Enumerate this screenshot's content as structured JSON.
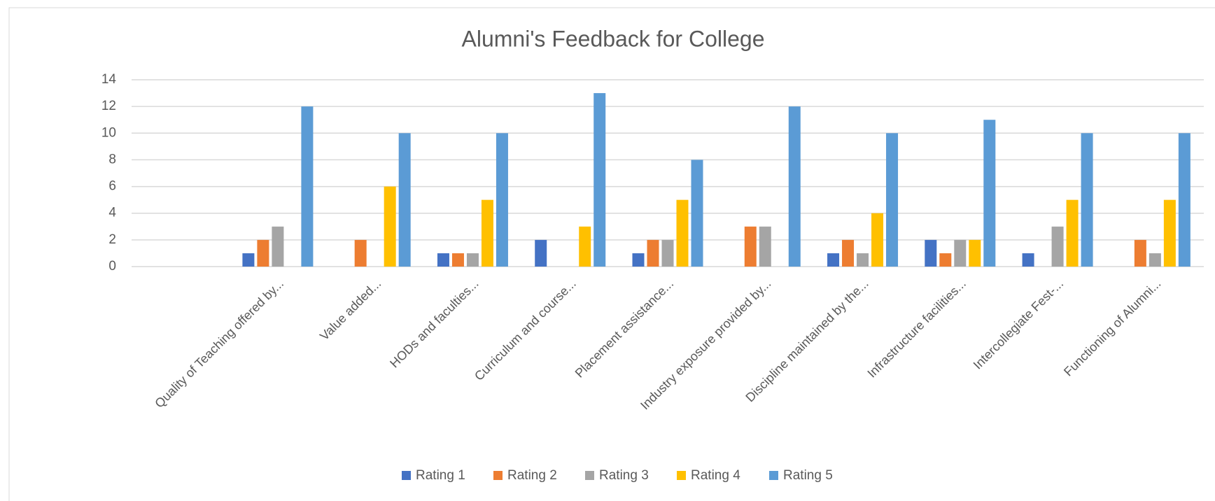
{
  "chart_data": {
    "type": "bar",
    "title": "Alumni's Feedback for College",
    "categories": [
      null,
      "Quality of Teaching offered by...",
      "Value added...",
      "HODs and faculties...",
      "Curriculum and course...",
      "Placement assistance...",
      "Industry exposure provided by...",
      "Discipline maintained by the...",
      "Infrastructure facilities...",
      "Intercollegiate Fest-...",
      "Functioning of Alumni..."
    ],
    "series": [
      {
        "name": "Rating 1",
        "color": "#4472c4",
        "values": [
          null,
          1,
          0,
          1,
          2,
          1,
          0,
          1,
          2,
          1,
          0
        ]
      },
      {
        "name": "Rating 2",
        "color": "#ed7d31",
        "values": [
          null,
          2,
          2,
          1,
          0,
          2,
          3,
          2,
          1,
          0,
          2
        ]
      },
      {
        "name": "Rating 3",
        "color": "#a5a5a5",
        "values": [
          null,
          3,
          0,
          1,
          0,
          2,
          3,
          1,
          2,
          3,
          1
        ]
      },
      {
        "name": "Rating 4",
        "color": "#ffc000",
        "values": [
          null,
          0,
          6,
          5,
          3,
          5,
          0,
          4,
          2,
          5,
          5
        ]
      },
      {
        "name": "Rating 5",
        "color": "#5b9bd5",
        "values": [
          null,
          12,
          10,
          10,
          13,
          8,
          12,
          10,
          11,
          10,
          10
        ]
      }
    ],
    "ylim": [
      0,
      14
    ],
    "yticks": [
      0,
      2,
      4,
      6,
      8,
      10,
      12,
      14
    ],
    "grid": true,
    "legend": "bottom"
  }
}
